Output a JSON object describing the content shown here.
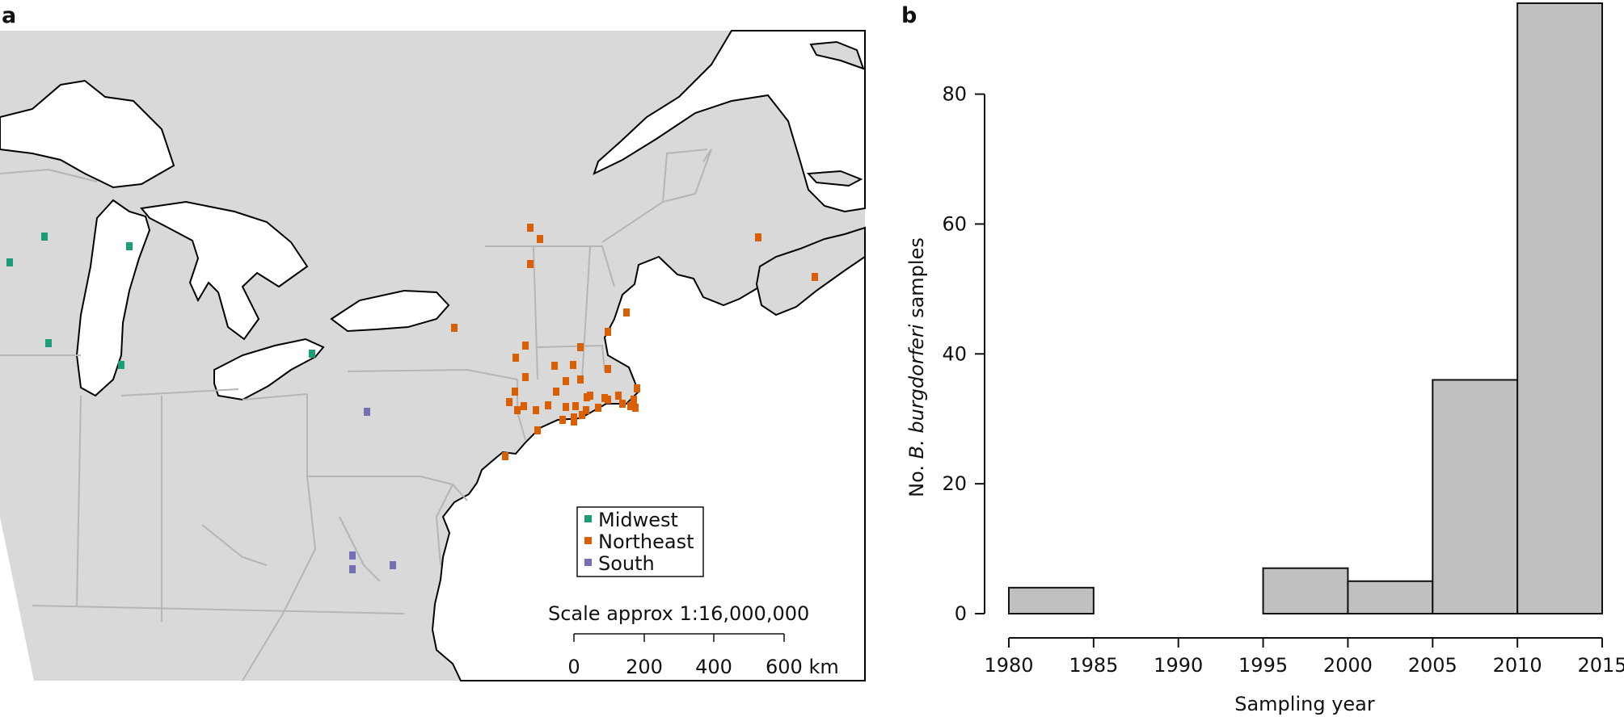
{
  "panel_a": {
    "label": "a",
    "legend": [
      {
        "name": "Midwest",
        "color": "#1b9e77"
      },
      {
        "name": "Northeast",
        "color": "#d95f02"
      },
      {
        "name": "South",
        "color": "#7570b3"
      }
    ],
    "scale_title": "Scale approx 1:16,000,000",
    "scale_ticks": [
      "0",
      "200",
      "400",
      "600 km"
    ],
    "map_colors": {
      "land": "#d9d9d9",
      "water": "#ffffff",
      "coast": "#000000",
      "border": "#b5b5b5"
    }
  },
  "panel_b": {
    "label": "b",
    "chart_data": {
      "type": "bar",
      "title": "",
      "xlabel": "Sampling year",
      "ylabel_prefix": "No. ",
      "ylabel_italic": "B. burgdorferi",
      "ylabel_suffix": " samples",
      "bin_edges": [
        1980,
        1985,
        1990,
        1995,
        2000,
        2005,
        2010,
        2015
      ],
      "values": [
        4,
        0,
        0,
        7,
        5,
        36,
        94
      ],
      "x_ticks": [
        "1980",
        "1985",
        "1990",
        "1995",
        "2000",
        "2005",
        "2010",
        "2015"
      ],
      "y_ticks": [
        "0",
        "20",
        "40",
        "60",
        "80"
      ],
      "ylim": [
        0,
        94
      ],
      "xlim": [
        1980,
        2015
      ],
      "bar_color": "#c0c0c0",
      "edge_color": "#111111",
      "grid": false
    }
  }
}
